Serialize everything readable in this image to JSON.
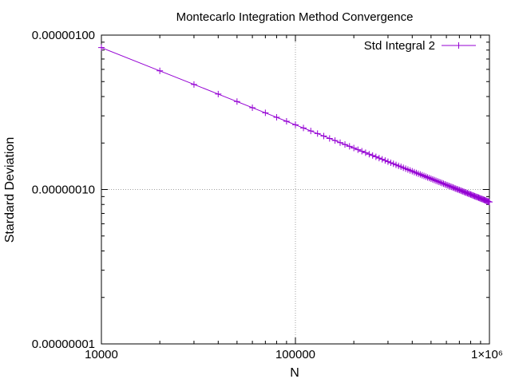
{
  "chart_data": {
    "type": "line",
    "title": "Montecarlo Integration Method Convergence",
    "xlabel": "N",
    "ylabel": "Stardard Deviation",
    "x_scale": "log",
    "y_scale": "log",
    "xlim": [
      10000,
      1000000
    ],
    "ylim": [
      1e-08,
      1e-06
    ],
    "grid": true,
    "legend_position": "top-right",
    "x_ticks": [
      {
        "value": 10000,
        "label": "10000"
      },
      {
        "value": 100000,
        "label": "100000"
      },
      {
        "value": 1000000,
        "label": "1×10⁶"
      }
    ],
    "y_ticks": [
      {
        "value": 1e-08,
        "label": "0.00000001"
      },
      {
        "value": 1e-07,
        "label": "0.00000010"
      },
      {
        "value": 1e-06,
        "label": "0.00000100"
      }
    ],
    "series": [
      {
        "name": "Std Integral 2",
        "color": "#9400d3",
        "x_start": 10000,
        "x_step": 10000,
        "x_end": 1000000,
        "y_at_x_start": 8.3e-07,
        "exponent": -0.5
      }
    ]
  }
}
